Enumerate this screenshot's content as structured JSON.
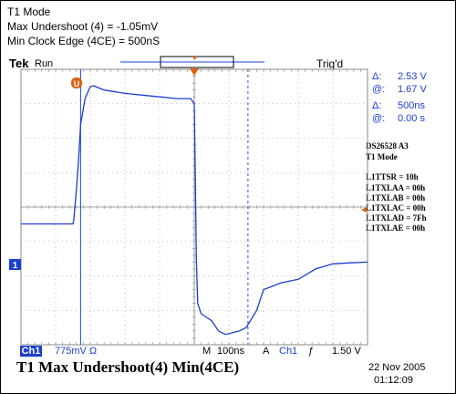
{
  "header": {
    "line1": "T1 Mode",
    "line2": "Max Undershoot (4) = -1.05mV",
    "line3": "Min Clock Edge (4CE) = 500nS"
  },
  "scope": {
    "brand": "Tek",
    "state": "Run",
    "trigger_status": "Trig'd",
    "channel_marker": "1",
    "trigger_marker": "T",
    "cursor_marker": "U"
  },
  "cursors": {
    "delta_v_sym": "Δ:",
    "delta_v": "2.53 V",
    "at_v_sym": "@:",
    "at_v": "1.67 V",
    "delta_t_sym": "Δ:",
    "delta_t": "500ns",
    "at_t_sym": "@:",
    "at_t": "0.00 s"
  },
  "side_info": [
    "DS26528  A3",
    "T1 Mode",
    "",
    "L1TTSR = 10h",
    "L1TXLAA = 00h",
    "L1TXLAB = 00h",
    "L1TXLAC = 00h",
    "L1TXLAD = 7Fh",
    "L1TXLAE = 00h"
  ],
  "bottom": {
    "ch_label": "Ch1",
    "volts_div": "775mV Ω",
    "m_label": "M",
    "time_div": "100ns",
    "a_label": "A",
    "trig_ch": "Ch1",
    "trig_slope": "ƒ",
    "trig_level": "1.50 V"
  },
  "caption": "T1 Max Undershoot(4)  Min(4CE)",
  "timestamp": {
    "date": "22 Nov 2005",
    "time": "01:12:09"
  },
  "colors": {
    "trace": "#1a3fd1",
    "grid": "#8a8a8a",
    "marker": "#e06010",
    "readout": "#1a3fd1"
  },
  "chart_data": {
    "type": "line",
    "grid": true,
    "x_unit": "div",
    "y_unit": "div",
    "xlim": [
      0,
      10
    ],
    "ylim": [
      -4,
      4
    ],
    "series": [
      {
        "values": [
          [
            0.0,
            -0.49
          ],
          [
            0.5,
            -0.49
          ],
          [
            1.0,
            -0.49
          ],
          [
            1.5,
            -0.49
          ],
          [
            1.52,
            -0.4
          ],
          [
            1.6,
            0.5
          ],
          [
            1.65,
            1.2
          ],
          [
            1.72,
            2.4
          ],
          [
            1.85,
            3.15
          ],
          [
            2.0,
            3.5
          ],
          [
            2.1,
            3.52
          ],
          [
            2.4,
            3.4
          ],
          [
            3.0,
            3.3
          ],
          [
            3.5,
            3.25
          ],
          [
            4.0,
            3.2
          ],
          [
            4.5,
            3.15
          ],
          [
            4.9,
            3.15
          ],
          [
            5.0,
            3.0
          ],
          [
            5.03,
            1.0
          ],
          [
            5.06,
            -1.5
          ],
          [
            5.1,
            -2.8
          ],
          [
            5.2,
            -3.1
          ],
          [
            5.5,
            -3.3
          ],
          [
            5.7,
            -3.6
          ],
          [
            5.9,
            -3.7
          ],
          [
            6.3,
            -3.6
          ],
          [
            6.5,
            -3.5
          ],
          [
            6.8,
            -3.0
          ],
          [
            7.0,
            -2.4
          ],
          [
            7.5,
            -2.2
          ],
          [
            8.0,
            -2.1
          ],
          [
            8.5,
            -1.8
          ],
          [
            9.0,
            -1.65
          ],
          [
            9.5,
            -1.62
          ],
          [
            10.0,
            -1.6
          ]
        ]
      }
    ],
    "cursor_v_lines": [
      1.72,
      6.55
    ],
    "cursor_h_lines": [
      3.25,
      -3.7
    ],
    "trigger_position": 5.0
  }
}
